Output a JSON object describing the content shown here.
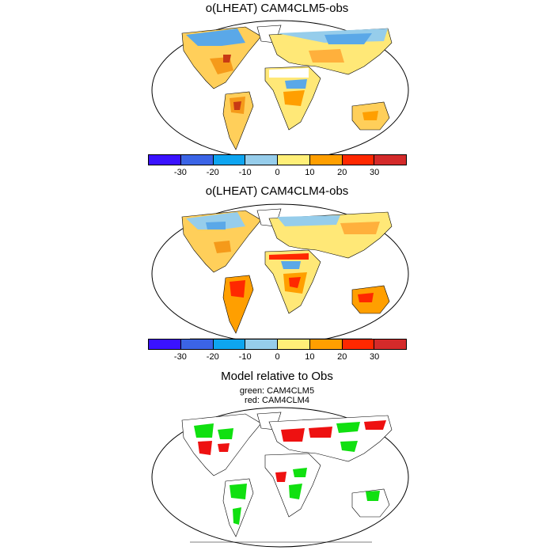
{
  "panels": [
    {
      "title": "o(LHEAT) CAM4CLM5-obs"
    },
    {
      "title": "o(LHEAT) CAM4CLM4-obs"
    },
    {
      "title": "Model relative to Obs",
      "legend": [
        "green: CAM4CLM5",
        "red: CAM4CLM4"
      ]
    }
  ],
  "colorbar": {
    "colors": [
      "#3a12ff",
      "#3b64e6",
      "#0ea5f0",
      "#96cdeb",
      "#ffef78",
      "#ff9f00",
      "#ff2800",
      "#d42a2a"
    ],
    "labels": [
      "-30",
      "-20",
      "-10",
      "0",
      "10",
      "20",
      "30"
    ]
  },
  "legend_colors": {
    "clm5": "#10e010",
    "clm4": "#ee1111"
  }
}
